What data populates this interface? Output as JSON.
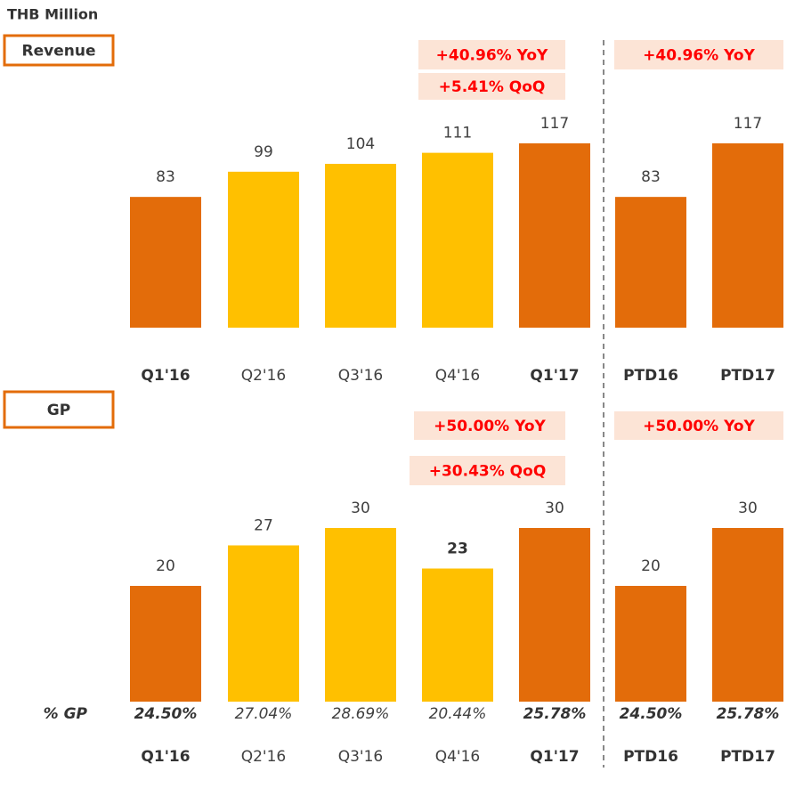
{
  "chart_data": [
    {
      "type": "bar",
      "unit": "THB Million",
      "title": "Revenue",
      "categories": [
        "Q1'16",
        "Q2'16",
        "Q3'16",
        "Q4'16",
        "Q1'17",
        "PTD16",
        "PTD17"
      ],
      "values": [
        83,
        99,
        104,
        111,
        117,
        83,
        117
      ],
      "colors": [
        "#e36c0a",
        "#ffc000",
        "#ffc000",
        "#ffc000",
        "#e36c0a",
        "#e36c0a",
        "#e36c0a"
      ],
      "annotations": [
        "+40.96% YoY",
        "+5.41% QoQ",
        "+40.96% YoY"
      ]
    },
    {
      "type": "bar",
      "title": "GP",
      "categories": [
        "Q1'16",
        "Q2'16",
        "Q3'16",
        "Q4'16",
        "Q1'17",
        "PTD16",
        "PTD17"
      ],
      "values": [
        20,
        27,
        30,
        23,
        30,
        20,
        30
      ],
      "colors": [
        "#e36c0a",
        "#ffc000",
        "#ffc000",
        "#ffc000",
        "#e36c0a",
        "#e36c0a",
        "#e36c0a"
      ],
      "annotations": [
        "+50.00% YoY",
        "+30.43% QoQ",
        "+50.00% YoY"
      ],
      "gp_margin": {
        "label": "% GP",
        "values": [
          "24.50%",
          "27.04%",
          "28.69%",
          "20.44%",
          "25.78%",
          "24.50%",
          "25.78%"
        ]
      }
    }
  ]
}
